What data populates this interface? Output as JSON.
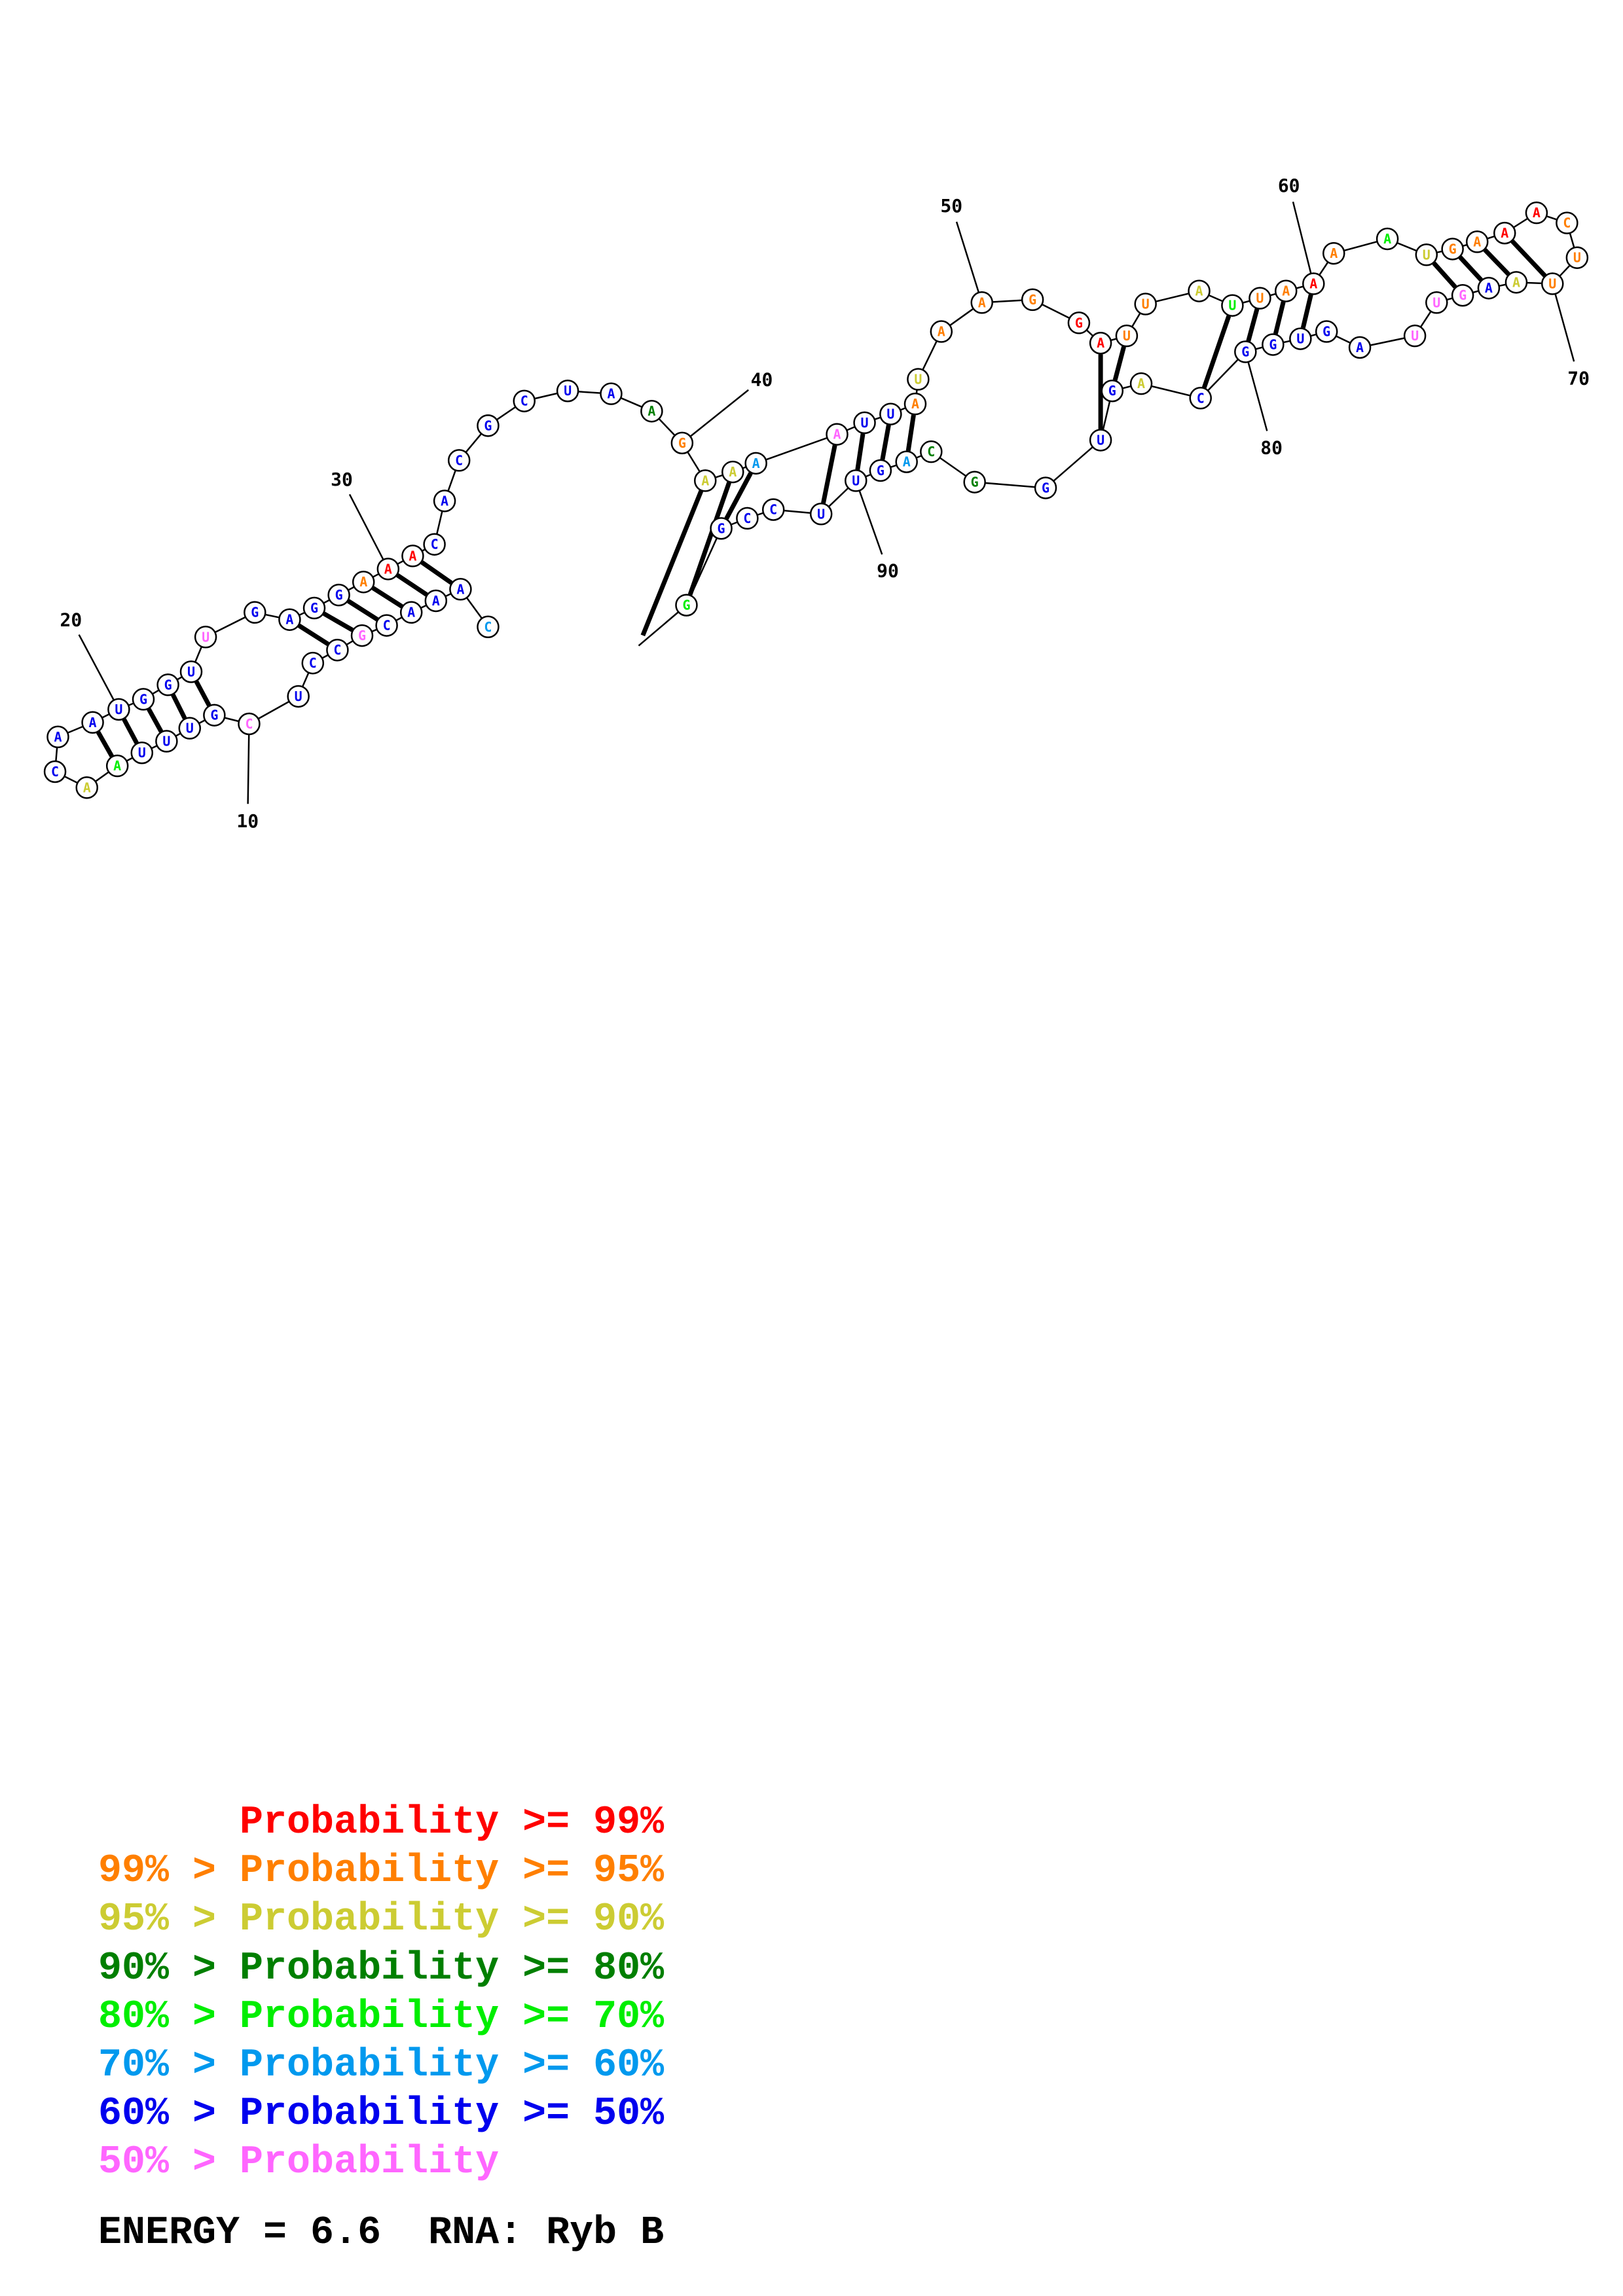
{
  "legend": [
    {
      "text": "      Probability >= 99%",
      "color": "#ff0000"
    },
    {
      "text": "99% > Probability >= 95%",
      "color": "#ff7f00"
    },
    {
      "text": "95% > Probability >= 90%",
      "color": "#cccc33"
    },
    {
      "text": "90% > Probability >= 80%",
      "color": "#007f00"
    },
    {
      "text": "80% > Probability >= 70%",
      "color": "#00ee00"
    },
    {
      "text": "70% > Probability >= 60%",
      "color": "#0099ee"
    },
    {
      "text": "60% > Probability >= 50%",
      "color": "#0000ee"
    },
    {
      "text": "50% > Probability",
      "color": "#ff66ff"
    }
  ],
  "footer": {
    "energy": "ENERGY = 6.6",
    "rna": "RNA: Ryb B"
  },
  "position_labels": [
    "10",
    "20",
    "30",
    "40",
    "50",
    "60",
    "70",
    "80",
    "90"
  ],
  "nucleotides": [
    {
      "base": "C",
      "color": "#0099ee"
    },
    {
      "base": "A",
      "color": "#0000ee"
    },
    {
      "base": "A",
      "color": "#0000ee"
    },
    {
      "base": "A",
      "color": "#0000ee"
    },
    {
      "base": "C",
      "color": "#0000ee"
    },
    {
      "base": "G",
      "color": "#ff66ff"
    },
    {
      "base": "C",
      "color": "#0000ee"
    },
    {
      "base": "C",
      "color": "#0000ee"
    },
    {
      "base": "U",
      "color": "#0000ee"
    },
    {
      "base": "C",
      "color": "#ff66ff"
    },
    {
      "base": "G",
      "color": "#0000ee"
    },
    {
      "base": "U",
      "color": "#0000ee"
    },
    {
      "base": "U",
      "color": "#0000ee"
    },
    {
      "base": "U",
      "color": "#0000ee"
    },
    {
      "base": "A",
      "color": "#00ee00"
    },
    {
      "base": "A",
      "color": "#cccc33"
    },
    {
      "base": "C",
      "color": "#0000ee"
    },
    {
      "base": "A",
      "color": "#0000ee"
    },
    {
      "base": "A",
      "color": "#0000ee"
    },
    {
      "base": "U",
      "color": "#0000ee"
    },
    {
      "base": "G",
      "color": "#0000ee"
    },
    {
      "base": "G",
      "color": "#0000ee"
    },
    {
      "base": "U",
      "color": "#0000ee"
    },
    {
      "base": "U",
      "color": "#ff66ff"
    },
    {
      "base": "G",
      "color": "#0000ee"
    },
    {
      "base": "A",
      "color": "#0000ee"
    },
    {
      "base": "G",
      "color": "#0000ee"
    },
    {
      "base": "G",
      "color": "#0000ee"
    },
    {
      "base": "A",
      "color": "#ff7f00"
    },
    {
      "base": "A",
      "color": "#ff0000"
    },
    {
      "base": "A",
      "color": "#ff0000"
    },
    {
      "base": "C",
      "color": "#0000ee"
    },
    {
      "base": "A",
      "color": "#0000ee"
    },
    {
      "base": "C",
      "color": "#0000ee"
    },
    {
      "base": "G",
      "color": "#0000ee"
    },
    {
      "base": "C",
      "color": "#0000ee"
    },
    {
      "base": "U",
      "color": "#0000ee"
    },
    {
      "base": "A",
      "color": "#0000ee"
    },
    {
      "base": "A",
      "color": "#007f00"
    },
    {
      "base": "G",
      "color": "#ff7f00"
    },
    {
      "base": "A",
      "color": "#cccc33"
    },
    {
      "base": "A",
      "color": "#cccc33"
    },
    {
      "base": "A",
      "color": "#0099ee"
    },
    {
      "base": "A",
      "color": "#ff66ff"
    },
    {
      "base": "U",
      "color": "#0000ee"
    },
    {
      "base": "U",
      "color": "#0000ee"
    },
    {
      "base": "A",
      "color": "#ff7f00"
    },
    {
      "base": "U",
      "color": "#cccc33"
    },
    {
      "base": "A",
      "color": "#ff7f00"
    },
    {
      "base": "A",
      "color": "#ff7f00"
    },
    {
      "base": "G",
      "color": "#ff7f00"
    },
    {
      "base": "G",
      "color": "#ff0000"
    },
    {
      "base": "A",
      "color": "#ff0000"
    },
    {
      "base": "U",
      "color": "#ff7f00"
    },
    {
      "base": "U",
      "color": "#ff7f00"
    },
    {
      "base": "A",
      "color": "#cccc33"
    },
    {
      "base": "U",
      "color": "#00ee00"
    },
    {
      "base": "U",
      "color": "#ff7f00"
    },
    {
      "base": "A",
      "color": "#ff7f00"
    },
    {
      "base": "A",
      "color": "#ff0000"
    },
    {
      "base": "A",
      "color": "#ff7f00"
    },
    {
      "base": "A",
      "color": "#00ee00"
    },
    {
      "base": "U",
      "color": "#cccc33"
    },
    {
      "base": "G",
      "color": "#ff7f00"
    },
    {
      "base": "A",
      "color": "#ff7f00"
    },
    {
      "base": "A",
      "color": "#ff0000"
    },
    {
      "base": "A",
      "color": "#ff0000"
    },
    {
      "base": "C",
      "color": "#ff7f00"
    },
    {
      "base": "U",
      "color": "#ff7f00"
    },
    {
      "base": "U",
      "color": "#ff7f00"
    },
    {
      "base": "A",
      "color": "#cccc33"
    },
    {
      "base": "A",
      "color": "#0000ee"
    },
    {
      "base": "G",
      "color": "#ff66ff"
    },
    {
      "base": "U",
      "color": "#ff66ff"
    },
    {
      "base": "U",
      "color": "#ff66ff"
    },
    {
      "base": "A",
      "color": "#0000ee"
    },
    {
      "base": "G",
      "color": "#0000ee"
    },
    {
      "base": "U",
      "color": "#0000ee"
    },
    {
      "base": "G",
      "color": "#0000ee"
    },
    {
      "base": "G",
      "color": "#0000ee"
    },
    {
      "base": "C",
      "color": "#0000ee"
    },
    {
      "base": "A",
      "color": "#cccc33"
    },
    {
      "base": "G",
      "color": "#0000ee"
    },
    {
      "base": "U",
      "color": "#0000ee"
    },
    {
      "base": "G",
      "color": "#0000ee"
    },
    {
      "base": "G",
      "color": "#007f00"
    },
    {
      "base": "C",
      "color": "#007f00"
    },
    {
      "base": "A",
      "color": "#0099ee"
    },
    {
      "base": "G",
      "color": "#0000ee"
    },
    {
      "base": "U",
      "color": "#0000ee"
    },
    {
      "base": "U",
      "color": "#0000ee"
    },
    {
      "base": "C",
      "color": "#0000ee"
    },
    {
      "base": "C",
      "color": "#0000ee"
    },
    {
      "base": "G",
      "color": "#0000ee"
    },
    {
      "base": "G",
      "color": "#00ee00"
    }
  ]
}
